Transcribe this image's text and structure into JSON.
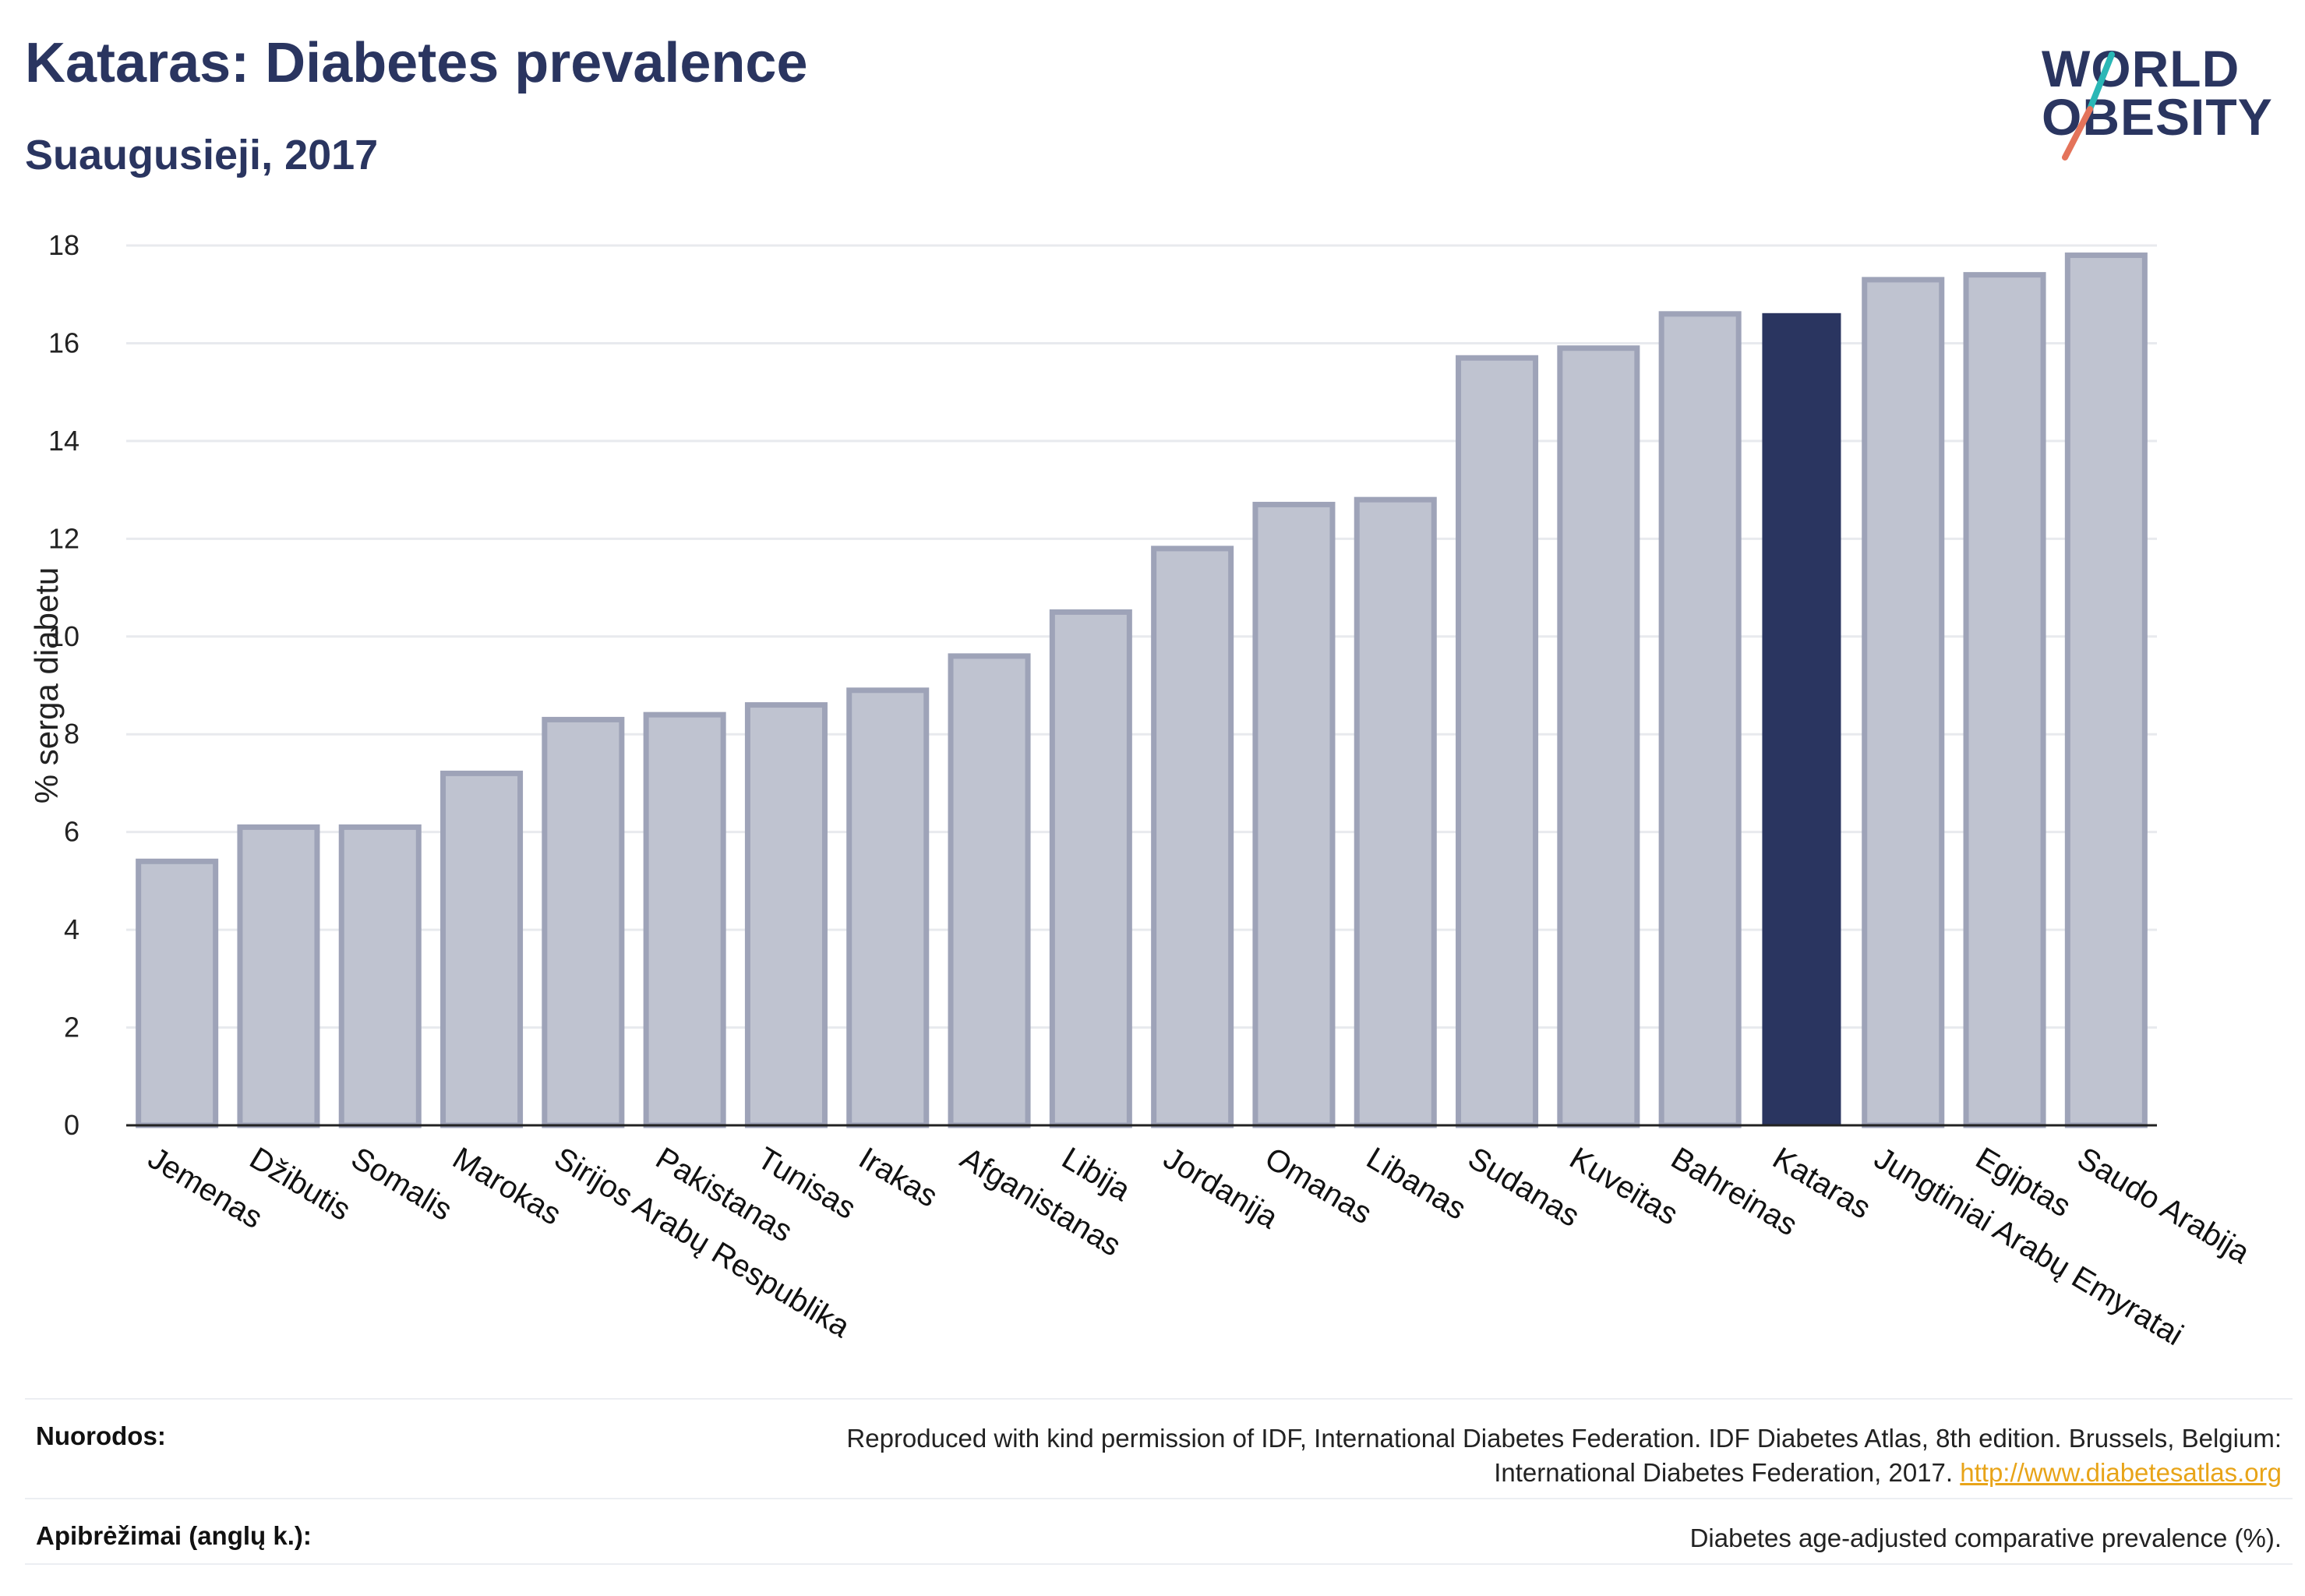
{
  "header": {
    "title": "Kataras: Diabetes prevalence",
    "subtitle": "Suaugusieji, 2017"
  },
  "logo": {
    "line1": "WORLD",
    "line2": "OBESITY",
    "accent_colors": [
      "#2ab7b6",
      "#e4735a"
    ]
  },
  "chart_data": {
    "type": "bar",
    "title": "Kataras: Diabetes prevalence",
    "subtitle": "Suaugusieji, 2017",
    "xlabel": "",
    "ylabel": "% serga diabetu",
    "ylim": [
      0,
      18
    ],
    "yticks": [
      0,
      2,
      4,
      6,
      8,
      10,
      12,
      14,
      16,
      18
    ],
    "grid": true,
    "highlight": "Kataras",
    "colors": {
      "bar": "#bfc3d0",
      "bar_border": "#9ea3b8",
      "highlight": "#2a3560"
    },
    "categories": [
      "Jemenas",
      "Džibutis",
      "Somalis",
      "Marokas",
      "Sirijos Arabų Respublika",
      "Pakistanas",
      "Tunisas",
      "Irakas",
      "Afganistanas",
      "Libija",
      "Jordanija",
      "Omanas",
      "Libanas",
      "Sudanas",
      "Kuveitas",
      "Bahreinas",
      "Kataras",
      "Jungtiniai Arabų Emyratai",
      "Egiptas",
      "Saudo Arabija"
    ],
    "values": [
      5.4,
      6.1,
      6.1,
      7.2,
      8.3,
      8.4,
      8.6,
      8.9,
      9.6,
      10.5,
      11.8,
      12.7,
      12.8,
      15.7,
      15.9,
      16.6,
      16.6,
      17.3,
      17.4,
      17.8
    ]
  },
  "references": {
    "sources_label": "Nuorodos:",
    "sources_text_1": "Reproduced with kind permission of IDF, International Diabetes Federation. IDF Diabetes Atlas, 8th edition. Brussels, Belgium:",
    "sources_text_2": "International Diabetes Federation, 2017.",
    "sources_link": "http://www.diabetesatlas.org",
    "definitions_label": "Apibrėžimai (anglų k.):",
    "definitions_text": "Diabetes age-adjusted comparative prevalence (%)."
  }
}
